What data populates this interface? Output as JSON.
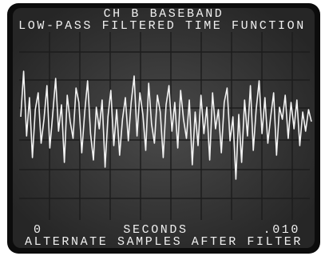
{
  "chart_data": {
    "type": "line",
    "title": "CH B BASEBAND",
    "subtitle": "LOW-PASS FILTERED TIME FUNCTION",
    "x_label": "SECONDS",
    "caption": "ALTERNATE SAMPLES AFTER FILTER",
    "x": [
      0,
      0.0001,
      0.0002,
      0.0003,
      0.0004,
      0.0005,
      0.0006,
      0.0007,
      0.0008,
      0.0009,
      0.001,
      0.0011,
      0.0012,
      0.0013,
      0.0014,
      0.0015,
      0.0016,
      0.0017,
      0.0018,
      0.0019,
      0.002,
      0.0021,
      0.0022,
      0.0023,
      0.0024,
      0.0025,
      0.0026,
      0.0027,
      0.0028,
      0.0029,
      0.003,
      0.0031,
      0.0032,
      0.0033,
      0.0034,
      0.0035,
      0.0036,
      0.0037,
      0.0038,
      0.0039,
      0.004,
      0.0041,
      0.0042,
      0.0043,
      0.0044,
      0.0045,
      0.0046,
      0.0047,
      0.0048,
      0.0049,
      0.005,
      0.0051,
      0.0052,
      0.0053,
      0.0054,
      0.0055,
      0.0056,
      0.0057,
      0.0058,
      0.0059,
      0.006,
      0.0061,
      0.0062,
      0.0063,
      0.0064,
      0.0065,
      0.0066,
      0.0067,
      0.0068,
      0.0069,
      0.007,
      0.0071,
      0.0072,
      0.0073,
      0.0074,
      0.0075,
      0.0076,
      0.0077,
      0.0078,
      0.0079,
      0.008,
      0.0081,
      0.0082,
      0.0083,
      0.0084,
      0.0085,
      0.0086,
      0.0087,
      0.0088,
      0.0089,
      0.009,
      0.0091,
      0.0092,
      0.0093,
      0.0094,
      0.0095,
      0.0096,
      0.0097,
      0.0098,
      0.0099,
      0.01
    ],
    "series": [
      {
        "color": "#f2f2f2",
        "values": [
          0.3,
          2.2,
          -0.5,
          1.1,
          -1.4,
          0.6,
          1.3,
          -0.8,
          0.2,
          1.6,
          -1.0,
          0.4,
          1.9,
          -0.3,
          0.8,
          -1.6,
          1.2,
          0.1,
          -0.6,
          1.5,
          0.9,
          -1.2,
          0.5,
          1.8,
          -0.4,
          -1.5,
          0.7,
          -0.2,
          1.0,
          -1.8,
          0.3,
          1.4,
          -0.9,
          0.6,
          -1.3,
          0.2,
          1.1,
          -0.7,
          0.9,
          2.0,
          -0.5,
          1.3,
          0.4,
          -1.1,
          1.7,
          0.0,
          -0.8,
          1.2,
          0.5,
          -1.4,
          0.8,
          1.6,
          -0.3,
          0.9,
          -1.0,
          1.4,
          0.2,
          -0.6,
          1.0,
          -1.7,
          0.5,
          -0.9,
          1.2,
          -0.4,
          0.7,
          -1.5,
          1.3,
          -0.2,
          0.6,
          -1.2,
          0.9,
          1.5,
          -0.7,
          0.3,
          -2.3,
          0.4,
          -1.6,
          1.0,
          -0.5,
          1.6,
          -1.1,
          0.6,
          1.8,
          -0.4,
          1.1,
          -0.8,
          0.3,
          1.3,
          -1.3,
          0.7,
          0.2,
          1.2,
          -0.6,
          0.9,
          -0.2,
          1.0,
          -0.9,
          0.5,
          -0.3,
          0.6,
          0.1
        ]
      }
    ],
    "xlim": [
      0,
      0.01
    ],
    "xticks": [
      0,
      {
        "value": 0.01,
        "label": ".010"
      }
    ],
    "ylim": [
      -4,
      4
    ]
  }
}
